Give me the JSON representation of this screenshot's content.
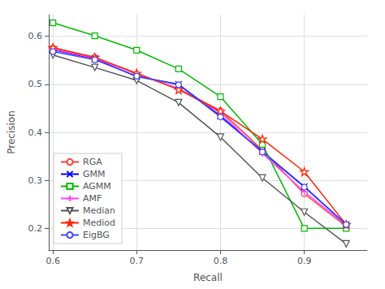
{
  "chart_data": {
    "type": "line",
    "xlabel": "Recall",
    "ylabel": "Precision",
    "x": [
      0.6,
      0.65,
      0.7,
      0.75,
      0.8,
      0.85,
      0.9,
      0.95
    ],
    "series": [
      {
        "name": "RGA",
        "color": "#ff4040",
        "marker": "circle",
        "values": [
          0.576,
          0.556,
          0.521,
          0.491,
          0.445,
          0.363,
          0.272,
          0.204
        ]
      },
      {
        "name": "GMM",
        "color": "#0000ff",
        "marker": "x",
        "values": [
          0.572,
          0.553,
          0.516,
          0.5,
          0.434,
          0.36,
          0.287,
          0.208
        ]
      },
      {
        "name": "AGMM",
        "color": "#00bb00",
        "marker": "square",
        "values": [
          0.628,
          0.601,
          0.571,
          0.532,
          0.474,
          0.375,
          0.2,
          0.2
        ]
      },
      {
        "name": "AMF",
        "color": "#ff44ff",
        "marker": "plus",
        "values": [
          0.573,
          0.554,
          0.522,
          0.491,
          0.441,
          0.356,
          0.276,
          0.207
        ]
      },
      {
        "name": "Median",
        "color": "#555555",
        "marker": "triangle_down",
        "values": [
          0.561,
          0.535,
          0.508,
          0.462,
          0.39,
          0.305,
          0.234,
          0.168
        ]
      },
      {
        "name": "Mediod",
        "color": "#ff2200",
        "marker": "star",
        "values": [
          0.576,
          0.556,
          0.523,
          0.489,
          0.444,
          0.386,
          0.318,
          0.208
        ]
      },
      {
        "name": "EigBG",
        "color": "#4444ff",
        "marker": "circle",
        "values": [
          0.568,
          0.551,
          0.517,
          0.499,
          0.432,
          0.359,
          0.286,
          0.208
        ]
      }
    ],
    "xlim": [
      0.595,
      0.975
    ],
    "xticks": [
      0.6,
      0.7,
      0.8,
      0.9
    ],
    "ylim": [
      0.155,
      0.645
    ],
    "yticks": [
      0.2,
      0.3,
      0.4,
      0.5,
      0.6
    ],
    "grid": true,
    "legend": "lower left"
  }
}
